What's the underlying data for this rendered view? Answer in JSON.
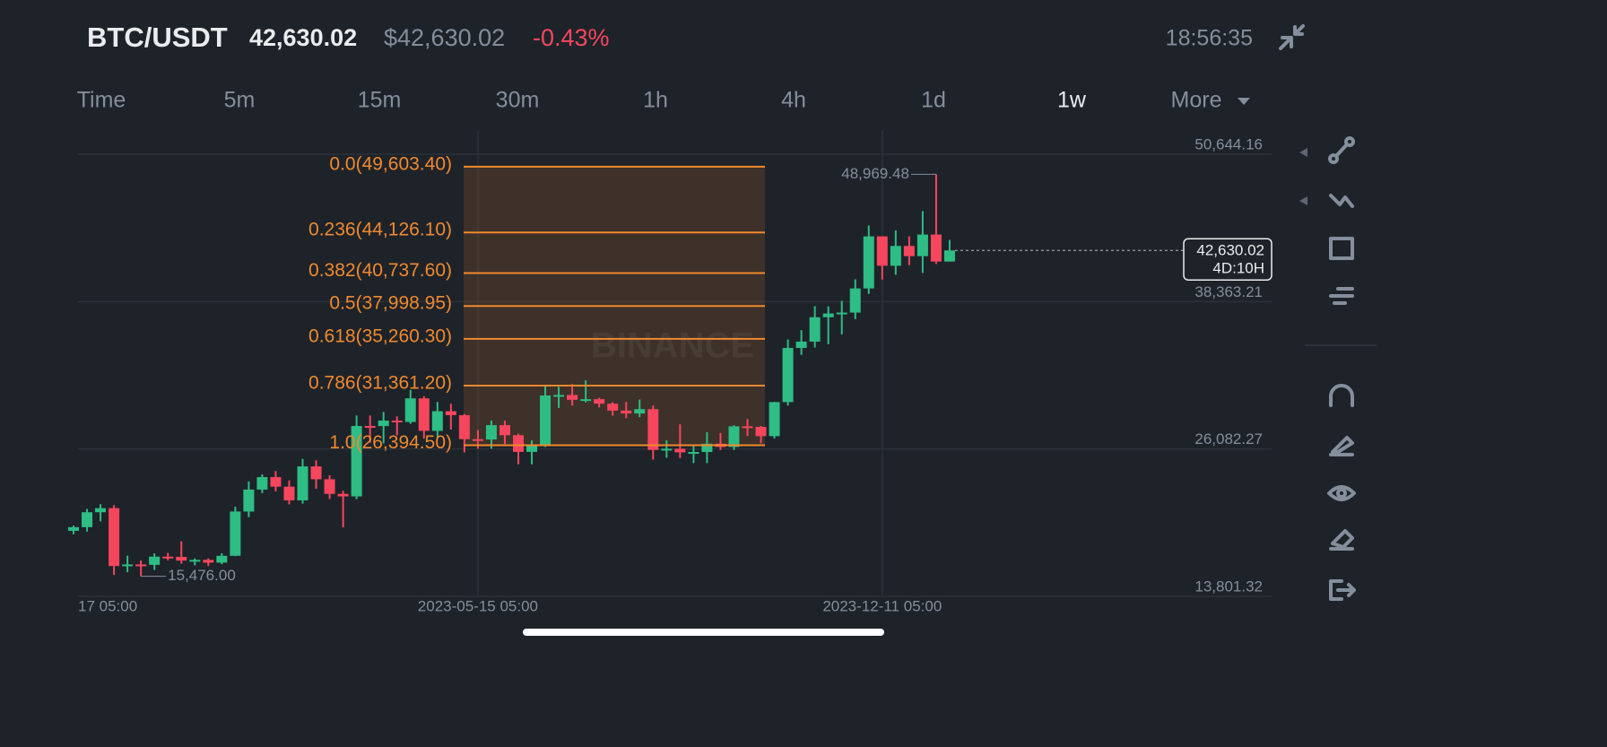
{
  "header": {
    "pair": "BTC/USDT",
    "price": "42,630.02",
    "usd_price": "$42,630.02",
    "change": "-0.43%",
    "time": "18:56:35"
  },
  "intervals": [
    "Time",
    "5m",
    "15m",
    "30m",
    "1h",
    "4h",
    "1d",
    "1w",
    "More"
  ],
  "chart_data": {
    "type": "candlestick",
    "categories": [
      "17 05:00",
      null,
      null,
      null,
      null,
      null,
      null,
      null,
      null,
      null,
      null,
      null,
      null,
      null,
      null,
      null,
      null,
      null,
      null,
      null,
      null,
      null,
      null,
      null,
      null,
      null,
      null,
      null,
      null,
      null,
      "2023-05-15 05:00",
      null,
      null,
      null,
      null,
      null,
      null,
      null,
      null,
      null,
      null,
      null,
      null,
      null,
      null,
      null,
      null,
      null,
      null,
      null,
      null,
      null,
      null,
      null,
      null,
      null,
      null,
      null,
      null,
      null,
      "2023-12-11 05:00",
      null,
      null,
      null,
      null,
      null
    ],
    "open": [
      19262,
      19568,
      20810,
      21150,
      16330,
      16460,
      16430,
      17110,
      17090,
      16780,
      16840,
      16610,
      17180,
      20870,
      22700,
      23740,
      22940,
      21800,
      24630,
      23560,
      22340,
      22130,
      28000,
      27990,
      28450,
      28330,
      30300,
      27590,
      29230,
      28900,
      26900,
      26870,
      28070,
      27230,
      25840,
      26340,
      30540,
      30580,
      30180,
      30230,
      29860,
      29280,
      29040,
      29400,
      26000,
      26100,
      25800,
      25830,
      26520,
      26250,
      27970,
      27920,
      27150,
      29990,
      34500,
      35030,
      37060,
      37370,
      37450,
      39460,
      43800,
      41350,
      43000,
      42150,
      43950,
      41700
    ],
    "high": [
      19700,
      21085,
      21480,
      21400,
      17190,
      16810,
      17390,
      17420,
      18390,
      16960,
      16970,
      17390,
      21260,
      23380,
      23960,
      24250,
      23460,
      25250,
      25130,
      23890,
      22600,
      28870,
      28870,
      29170,
      28800,
      31000,
      30480,
      30000,
      29850,
      29000,
      27660,
      28450,
      28440,
      27350,
      26800,
      31390,
      31260,
      31500,
      31800,
      30350,
      29990,
      30000,
      30200,
      29700,
      26800,
      28140,
      26400,
      27480,
      27420,
      28060,
      28580,
      28000,
      30000,
      35200,
      35980,
      37980,
      37970,
      38430,
      40220,
      44700,
      43800,
      44300,
      43800,
      45900,
      48969.48,
      43500
    ],
    "low": [
      18970,
      19200,
      20050,
      15588,
      15815,
      15476,
      16000,
      16800,
      16530,
      16390,
      16330,
      16480,
      17150,
      20400,
      22400,
      22540,
      21460,
      21530,
      22760,
      21900,
      19550,
      21900,
      26600,
      26550,
      27220,
      28180,
      26950,
      26960,
      27700,
      25800,
      26100,
      26100,
      26500,
      24800,
      24800,
      26250,
      29500,
      29700,
      29960,
      29550,
      28860,
      28650,
      28740,
      25200,
      25350,
      25330,
      24900,
      24900,
      26000,
      26000,
      27170,
      26560,
      26950,
      29700,
      33930,
      34540,
      34800,
      35630,
      36900,
      39000,
      40200,
      40600,
      41400,
      40750,
      41500,
      41700
    ],
    "close": [
      19568,
      20810,
      21150,
      16330,
      16460,
      16430,
      17110,
      17090,
      16780,
      16840,
      16610,
      17180,
      20870,
      22700,
      23740,
      22940,
      21800,
      24630,
      23560,
      22340,
      22130,
      28000,
      27990,
      28450,
      28330,
      30300,
      27590,
      29230,
      28900,
      26900,
      26870,
      28070,
      27230,
      25840,
      26340,
      30540,
      30580,
      30180,
      30230,
      29860,
      29280,
      29040,
      29400,
      26000,
      26100,
      25800,
      25830,
      26520,
      26250,
      27970,
      27920,
      27150,
      29990,
      34500,
      35030,
      37060,
      37370,
      37450,
      39460,
      43800,
      41350,
      43000,
      42150,
      43950,
      41700,
      42630.02
    ],
    "up_color": "#2ebd85",
    "down_color": "#f6465d",
    "ylim": [
      13801.32,
      52660
    ],
    "yticks": [
      {
        "value": 50644.16,
        "label": "50,644.16"
      },
      {
        "value": 38363.21,
        "label": "38,363.21"
      },
      {
        "value": 26082.27,
        "label": "26,082.27"
      },
      {
        "value": 13801.32,
        "label": "13,801.32"
      }
    ],
    "grid": true,
    "fibonacci": {
      "color": "#f0892e",
      "levels": [
        {
          "value": 49603.4,
          "label": "0.0(49,603.40)"
        },
        {
          "value": 44126.1,
          "label": "0.236(44,126.10)"
        },
        {
          "value": 40737.6,
          "label": "0.382(40,737.60)"
        },
        {
          "value": 37998.95,
          "label": "0.5(37,998.95)"
        },
        {
          "value": 35260.3,
          "label": "0.618(35,260.30)"
        },
        {
          "value": 31361.2,
          "label": "0.786(31,361.20)"
        },
        {
          "value": 26394.5,
          "label": "1.0(26,394.50)"
        }
      ]
    },
    "annotations": [
      {
        "value": 48969.48,
        "label": "48,969.48"
      },
      {
        "value": 15476.0,
        "label": "15,476.00"
      }
    ],
    "last_price": {
      "value": 42630.02,
      "label": "42,630.02"
    },
    "countdown": "4D:10H",
    "watermark": "BINANCE"
  }
}
